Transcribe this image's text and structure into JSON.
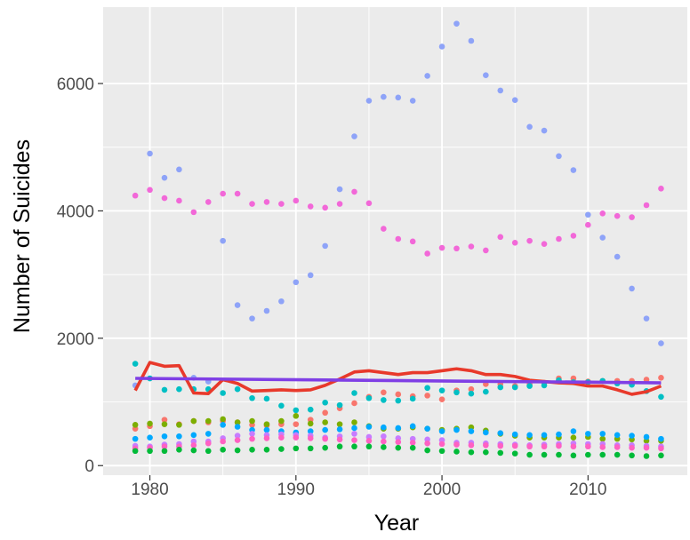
{
  "chart_data": {
    "type": "scatter",
    "xlabel": "Year",
    "ylabel": "Number of Suicides",
    "xlim": [
      1976.8,
      2016.8
    ],
    "ylim": [
      -150,
      7200
    ],
    "x_ticks": [
      1980,
      1990,
      2000,
      2010
    ],
    "y_ticks": [
      0,
      2000,
      4000,
      6000
    ],
    "x_tick_labels": [
      "1980",
      "1990",
      "2000",
      "2010"
    ],
    "y_tick_labels": [
      "0",
      "2000",
      "4000",
      "6000"
    ],
    "grid": true,
    "legend": "none",
    "background": "#ebebeb",
    "point_series": [
      {
        "color": "#8ea3f8",
        "x": [
          1979,
          1980,
          1981,
          1982,
          1983,
          1984,
          1985,
          1986,
          1987,
          1988,
          1989,
          1990,
          1991,
          1992,
          1993,
          1994,
          1995,
          1996,
          1997,
          1998,
          1999,
          2000,
          2001,
          2002,
          2003,
          2004,
          2005,
          2006,
          2007,
          2008,
          2009,
          2010,
          2011,
          2012,
          2013,
          2014,
          2015
        ],
        "y": [
          1260,
          4900,
          4520,
          4650,
          1380,
          1320,
          3530,
          2520,
          2310,
          2430,
          2580,
          2880,
          2990,
          3450,
          4340,
          5170,
          5730,
          5790,
          5780,
          5730,
          6120,
          6580,
          6940,
          6670,
          6130,
          5890,
          5740,
          5320,
          5260,
          4860,
          4640,
          3940,
          3580,
          3280,
          2780,
          2310,
          1920
        ]
      },
      {
        "color": "#f268d8",
        "x": [
          1979,
          1980,
          1981,
          1982,
          1983,
          1984,
          1985,
          1986,
          1987,
          1988,
          1989,
          1990,
          1991,
          1992,
          1993,
          1994,
          1995,
          1996,
          1997,
          1998,
          1999,
          2000,
          2001,
          2002,
          2003,
          2004,
          2005,
          2006,
          2007,
          2008,
          2009,
          2010,
          2011,
          2012,
          2013,
          2014,
          2015
        ],
        "y": [
          4240,
          4330,
          4200,
          4160,
          3980,
          4140,
          4270,
          4270,
          4110,
          4140,
          4110,
          4160,
          4070,
          4050,
          4110,
          4300,
          4120,
          3720,
          3560,
          3520,
          3330,
          3420,
          3410,
          3440,
          3380,
          3590,
          3500,
          3530,
          3480,
          3560,
          3610,
          3780,
          3960,
          3920,
          3900,
          4090,
          4350
        ]
      },
      {
        "color": "#f8766d",
        "x": [
          1979,
          1980,
          1981,
          1982,
          1983,
          1984,
          1985,
          1986,
          1987,
          1988,
          1989,
          1990,
          1991,
          1992,
          1993,
          1994,
          1995,
          1996,
          1997,
          1998,
          1999,
          2000,
          2001,
          2002,
          2003,
          2004,
          2005,
          2006,
          2007,
          2008,
          2009,
          2010,
          2011,
          2012,
          2013,
          2014,
          2015
        ],
        "y": [
          580,
          620,
          720,
          650,
          700,
          680,
          700,
          680,
          640,
          630,
          650,
          650,
          720,
          830,
          900,
          980,
          1080,
          1150,
          1120,
          1090,
          1100,
          1040,
          1180,
          1200,
          1280,
          1280,
          1250,
          1280,
          1300,
          1370,
          1370,
          1320,
          1330,
          1330,
          1330,
          1350,
          1380
        ]
      },
      {
        "color": "#00bfc4",
        "x": [
          1979,
          1980,
          1981,
          1982,
          1983,
          1984,
          1985,
          1986,
          1987,
          1988,
          1989,
          1990,
          1991,
          1992,
          1993,
          1994,
          1995,
          1996,
          1997,
          1998,
          1999,
          2000,
          2001,
          2002,
          2003,
          2004,
          2005,
          2006,
          2007,
          2008,
          2009,
          2010,
          2011,
          2012,
          2013,
          2014,
          2015
        ],
        "y": [
          1600,
          1370,
          1190,
          1200,
          1200,
          1200,
          1140,
          1200,
          1060,
          1050,
          940,
          870,
          880,
          990,
          950,
          1140,
          1060,
          1030,
          1020,
          1050,
          1220,
          1180,
          1150,
          1130,
          1160,
          1230,
          1230,
          1250,
          1260,
          1340,
          1310,
          1310,
          1330,
          1290,
          1270,
          1170,
          1080
        ]
      },
      {
        "color": "#7cae00",
        "x": [
          1979,
          1980,
          1981,
          1982,
          1983,
          1984,
          1985,
          1986,
          1987,
          1988,
          1989,
          1990,
          1991,
          1992,
          1993,
          1994,
          1995,
          1996,
          1997,
          1998,
          1999,
          2000,
          2001,
          2002,
          2003,
          2004,
          2005,
          2006,
          2007,
          2008,
          2009,
          2010,
          2011,
          2012,
          2013,
          2014,
          2015
        ],
        "y": [
          640,
          660,
          650,
          640,
          700,
          700,
          730,
          680,
          700,
          650,
          700,
          780,
          660,
          680,
          650,
          680,
          620,
          580,
          580,
          600,
          580,
          560,
          580,
          600,
          550,
          500,
          470,
          440,
          440,
          440,
          440,
          450,
          420,
          420,
          410,
          390,
          390
        ]
      },
      {
        "color": "#00a9ff",
        "x": [
          1979,
          1980,
          1981,
          1982,
          1983,
          1984,
          1985,
          1986,
          1987,
          1988,
          1989,
          1990,
          1991,
          1992,
          1993,
          1994,
          1995,
          1996,
          1997,
          1998,
          1999,
          2000,
          2001,
          2002,
          2003,
          2004,
          2005,
          2006,
          2007,
          2008,
          2009,
          2010,
          2011,
          2012,
          2013,
          2014,
          2015
        ],
        "y": [
          420,
          440,
          460,
          460,
          480,
          500,
          640,
          610,
          560,
          560,
          540,
          520,
          540,
          560,
          570,
          590,
          610,
          600,
          590,
          620,
          580,
          540,
          560,
          540,
          520,
          510,
          490,
          480,
          480,
          490,
          540,
          500,
          500,
          480,
          470,
          450,
          420
        ]
      },
      {
        "color": "#c77cff",
        "x": [
          1979,
          1980,
          1981,
          1982,
          1983,
          1984,
          1985,
          1986,
          1987,
          1988,
          1989,
          1990,
          1991,
          1992,
          1993,
          1994,
          1995,
          1996,
          1997,
          1998,
          1999,
          2000,
          2001,
          2002,
          2003,
          2004,
          2005,
          2006,
          2007,
          2008,
          2009,
          2010,
          2011,
          2012,
          2013,
          2014,
          2015
        ],
        "y": [
          310,
          300,
          330,
          340,
          380,
          380,
          430,
          470,
          500,
          480,
          490,
          480,
          470,
          440,
          460,
          500,
          450,
          460,
          430,
          420,
          410,
          400,
          360,
          360,
          350,
          340,
          330,
          320,
          330,
          340,
          350,
          340,
          340,
          320,
          320,
          310,
          300
        ]
      },
      {
        "color": "#ff61c3",
        "x": [
          1979,
          1980,
          1981,
          1982,
          1983,
          1984,
          1985,
          1986,
          1987,
          1988,
          1989,
          1990,
          1991,
          1992,
          1993,
          1994,
          1995,
          1996,
          1997,
          1998,
          1999,
          2000,
          2001,
          2002,
          2003,
          2004,
          2005,
          2006,
          2007,
          2008,
          2009,
          2010,
          2011,
          2012,
          2013,
          2014,
          2015
        ],
        "y": [
          270,
          280,
          300,
          300,
          320,
          350,
          380,
          400,
          420,
          430,
          440,
          440,
          430,
          420,
          410,
          400,
          390,
          380,
          370,
          360,
          350,
          340,
          330,
          320,
          320,
          310,
          310,
          300,
          300,
          310,
          300,
          300,
          290,
          290,
          280,
          280,
          270
        ]
      },
      {
        "color": "#00ba38",
        "x": [
          1979,
          1980,
          1981,
          1982,
          1983,
          1984,
          1985,
          1986,
          1987,
          1988,
          1989,
          1990,
          1991,
          1992,
          1993,
          1994,
          1995,
          1996,
          1997,
          1998,
          1999,
          2000,
          2001,
          2002,
          2003,
          2004,
          2005,
          2006,
          2007,
          2008,
          2009,
          2010,
          2011,
          2012,
          2013,
          2014,
          2015
        ],
        "y": [
          230,
          230,
          230,
          250,
          240,
          230,
          250,
          240,
          250,
          250,
          260,
          270,
          270,
          280,
          300,
          300,
          300,
          290,
          280,
          280,
          240,
          230,
          220,
          210,
          210,
          200,
          190,
          170,
          170,
          170,
          160,
          170,
          170,
          170,
          160,
          150,
          160
        ]
      }
    ],
    "line_series": [
      {
        "color": "#e8392b",
        "x": [
          1979,
          1980,
          1981,
          1982,
          1983,
          1984,
          1985,
          1986,
          1987,
          1988,
          1989,
          1990,
          1991,
          1992,
          1993,
          1994,
          1995,
          1996,
          1997,
          1998,
          1999,
          2000,
          2001,
          2002,
          2003,
          2004,
          2005,
          2006,
          2007,
          2008,
          2009,
          2010,
          2011,
          2012,
          2013,
          2014,
          2015
        ],
        "y": [
          1180,
          1620,
          1560,
          1570,
          1140,
          1130,
          1350,
          1290,
          1170,
          1180,
          1190,
          1180,
          1190,
          1260,
          1360,
          1470,
          1490,
          1460,
          1430,
          1460,
          1460,
          1490,
          1520,
          1490,
          1430,
          1430,
          1400,
          1340,
          1320,
          1300,
          1290,
          1250,
          1250,
          1190,
          1120,
          1160,
          1250
        ]
      },
      {
        "color": "#7f3fe5",
        "x": [
          1979,
          2015
        ],
        "y": [
          1370,
          1300
        ]
      }
    ]
  }
}
